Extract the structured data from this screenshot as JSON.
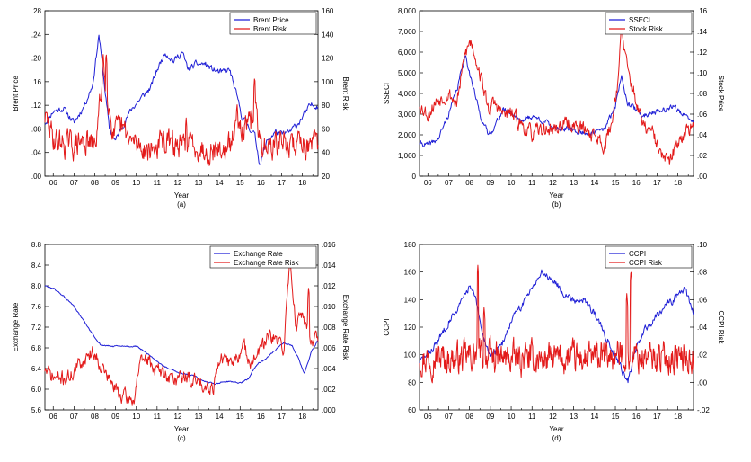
{
  "chart_data": [
    {
      "type": "line",
      "caption": "(a)",
      "xlabel": "Year",
      "ylabel_left": "Brent Price",
      "ylabel_right": "Brent Risk",
      "x_ticks": [
        "06",
        "07",
        "08",
        "09",
        "10",
        "11",
        "12",
        "13",
        "14",
        "15",
        "16",
        "17",
        "18"
      ],
      "xlim": [
        2005.6,
        2018.75
      ],
      "ylim_left": [
        0.0,
        0.28
      ],
      "ylim_right": [
        20,
        160
      ],
      "ticks_left": [
        ".00",
        ".04",
        ".08",
        ".12",
        ".16",
        ".20",
        ".24",
        ".28"
      ],
      "ticks_right": [
        "20",
        "40",
        "60",
        "80",
        "100",
        "120",
        "140",
        "160"
      ],
      "series": [
        {
          "name": "Brent Price",
          "axis": "left",
          "color": "#1f1fd6",
          "seed": 11,
          "x": [
            2005.6,
            2006.0,
            2006.5,
            2007.0,
            2007.5,
            2007.9,
            2008.2,
            2008.45,
            2008.7,
            2009.0,
            2009.4,
            2009.8,
            2010.3,
            2010.7,
            2011.0,
            2011.4,
            2011.8,
            2012.2,
            2012.5,
            2012.9,
            2013.3,
            2013.7,
            2014.1,
            2014.5,
            2014.8,
            2015.1,
            2015.4,
            2015.7,
            2015.95,
            2016.3,
            2016.7,
            2017.0,
            2017.4,
            2017.8,
            2018.1,
            2018.4,
            2018.75
          ],
          "y": [
            0.09,
            0.11,
            0.115,
            0.09,
            0.12,
            0.155,
            0.24,
            0.16,
            0.08,
            0.06,
            0.09,
            0.115,
            0.135,
            0.15,
            0.18,
            0.21,
            0.195,
            0.21,
            0.18,
            0.19,
            0.19,
            0.18,
            0.175,
            0.18,
            0.14,
            0.1,
            0.085,
            0.07,
            0.02,
            0.06,
            0.075,
            0.07,
            0.075,
            0.09,
            0.105,
            0.12,
            0.12
          ],
          "noise": 0.0045,
          "samples": 420
        },
        {
          "name": "Brent Risk",
          "axis": "right",
          "color": "#e31a1a",
          "seed": 29,
          "x": [
            2005.6,
            2006.0,
            2006.5,
            2007.0,
            2007.5,
            2008.0,
            2008.25,
            2008.4,
            2008.6,
            2008.9,
            2009.3,
            2009.8,
            2010.3,
            2010.8,
            2011.3,
            2011.8,
            2012.3,
            2012.8,
            2013.3,
            2013.8,
            2014.3,
            2014.6,
            2014.9,
            2015.2,
            2015.5,
            2015.7,
            2015.95,
            2016.3,
            2016.7,
            2017.1,
            2017.5,
            2017.9,
            2018.3,
            2018.75
          ],
          "y": [
            70,
            52,
            48,
            46,
            50,
            44,
            80,
            110,
            90,
            55,
            60,
            48,
            45,
            42,
            50,
            46,
            44,
            48,
            42,
            44,
            40,
            48,
            70,
            60,
            62,
            80,
            48,
            45,
            46,
            50,
            44,
            52,
            46,
            44
          ],
          "noise": 9,
          "samples": 520,
          "spikes": [
            [
              2008.4,
              125
            ],
            [
              2008.55,
              125
            ],
            [
              2015.7,
              105
            ],
            [
              2012.4,
              70
            ],
            [
              2014.85,
              82
            ]
          ]
        }
      ],
      "legend": {
        "placement": "top-right"
      }
    },
    {
      "type": "line",
      "caption": "(b)",
      "xlabel": "Year",
      "ylabel_left": "SSECI",
      "ylabel_right": "Stock Price",
      "x_ticks": [
        "06",
        "07",
        "08",
        "09",
        "10",
        "11",
        "12",
        "13",
        "14",
        "15",
        "16",
        "17",
        "18"
      ],
      "xlim": [
        2005.6,
        2018.75
      ],
      "ylim_left": [
        0,
        8000
      ],
      "ylim_right": [
        0.0,
        0.16
      ],
      "ticks_left": [
        "0",
        "1,000",
        "2,000",
        "3,000",
        "4,000",
        "5,000",
        "6,000",
        "7,000",
        "8,000"
      ],
      "ticks_right": [
        ".00",
        ".02",
        ".04",
        ".06",
        ".08",
        ".10",
        ".12",
        ".14",
        ".16"
      ],
      "series": [
        {
          "name": "SSECI",
          "axis": "left",
          "color": "#1f1fd6",
          "seed": 41,
          "x": [
            2005.6,
            2006.0,
            2006.5,
            2007.0,
            2007.4,
            2007.8,
            2008.1,
            2008.5,
            2008.9,
            2009.2,
            2009.6,
            2010.0,
            2010.5,
            2011.0,
            2011.5,
            2012.0,
            2012.5,
            2013.0,
            2013.5,
            2014.0,
            2014.5,
            2015.0,
            2015.3,
            2015.6,
            2015.9,
            2016.3,
            2016.8,
            2017.3,
            2017.8,
            2018.2,
            2018.75
          ],
          "y": [
            1600,
            1500,
            1800,
            3000,
            4200,
            5900,
            4600,
            3000,
            2000,
            2400,
            3200,
            3100,
            2700,
            2900,
            2700,
            2400,
            2300,
            2200,
            2100,
            2100,
            2300,
            3400,
            4900,
            3500,
            3300,
            2900,
            3100,
            3200,
            3400,
            3000,
            2600
          ],
          "noise": 110,
          "samples": 480
        },
        {
          "name": "Stock Risk",
          "axis": "right",
          "color": "#e31a1a",
          "seed": 53,
          "x": [
            2005.6,
            2006.0,
            2006.5,
            2007.0,
            2007.4,
            2007.8,
            2008.1,
            2008.5,
            2008.9,
            2009.2,
            2009.6,
            2010.0,
            2010.5,
            2011.0,
            2011.5,
            2012.0,
            2012.5,
            2013.0,
            2013.5,
            2014.0,
            2014.5,
            2014.8,
            2015.1,
            2015.3,
            2015.6,
            2015.9,
            2016.3,
            2016.8,
            2017.2,
            2017.6,
            2018.0,
            2018.4,
            2018.75
          ],
          "y": [
            0.07,
            0.06,
            0.075,
            0.08,
            0.07,
            0.12,
            0.13,
            0.1,
            0.065,
            0.07,
            0.06,
            0.06,
            0.05,
            0.04,
            0.045,
            0.045,
            0.05,
            0.05,
            0.045,
            0.04,
            0.03,
            0.05,
            0.09,
            0.14,
            0.1,
            0.08,
            0.05,
            0.04,
            0.02,
            0.012,
            0.035,
            0.045,
            0.045
          ],
          "noise": 0.006,
          "samples": 480,
          "spikes": [
            [
              2015.3,
              0.15
            ],
            [
              2008.0,
              0.135
            ]
          ]
        }
      ],
      "legend": {
        "placement": "top-right"
      }
    },
    {
      "type": "line",
      "caption": "(c)",
      "xlabel": "Year",
      "ylabel_left": "Exchange Rate",
      "ylabel_right": "Exchange Rate Risk",
      "x_ticks": [
        "06",
        "07",
        "08",
        "09",
        "10",
        "11",
        "12",
        "13",
        "14",
        "15",
        "16",
        "17",
        "18"
      ],
      "xlim": [
        2005.6,
        2018.75
      ],
      "ylim_left": [
        5.6,
        8.8
      ],
      "ylim_right": [
        0.0,
        0.016
      ],
      "ticks_left": [
        "5.6",
        "6.0",
        "6.4",
        "6.8",
        "7.2",
        "7.6",
        "8.0",
        "8.4",
        "8.8"
      ],
      "ticks_right": [
        ".000",
        ".002",
        ".004",
        ".006",
        ".008",
        ".010",
        ".012",
        ".014",
        ".016"
      ],
      "series": [
        {
          "name": "Exchange Rate",
          "axis": "left",
          "color": "#1f1fd6",
          "seed": 61,
          "x": [
            2005.6,
            2006.0,
            2006.5,
            2007.0,
            2007.5,
            2008.0,
            2008.3,
            2008.8,
            2009.5,
            2010.0,
            2010.3,
            2010.8,
            2011.3,
            2011.8,
            2012.3,
            2012.8,
            2013.3,
            2013.8,
            2014.2,
            2014.6,
            2015.0,
            2015.4,
            2015.6,
            2015.9,
            2016.3,
            2016.8,
            2017.1,
            2017.5,
            2017.8,
            2018.1,
            2018.4,
            2018.75
          ],
          "y": [
            8.0,
            7.95,
            7.8,
            7.6,
            7.3,
            7.0,
            6.85,
            6.83,
            6.83,
            6.83,
            6.75,
            6.6,
            6.45,
            6.35,
            6.3,
            6.25,
            6.15,
            6.1,
            6.15,
            6.15,
            6.12,
            6.2,
            6.35,
            6.5,
            6.6,
            6.8,
            6.9,
            6.85,
            6.6,
            6.3,
            6.7,
            6.95
          ],
          "noise": 0.012,
          "samples": 420
        },
        {
          "name": "Exchange Rate Risk",
          "axis": "right",
          "color": "#e31a1a",
          "seed": 71,
          "x": [
            2005.6,
            2005.9,
            2006.3,
            2006.8,
            2007.3,
            2007.7,
            2008.0,
            2008.4,
            2008.8,
            2009.2,
            2009.6,
            2009.9,
            2010.1,
            2010.5,
            2010.9,
            2011.3,
            2011.8,
            2012.3,
            2012.8,
            2013.3,
            2013.7,
            2014.0,
            2014.4,
            2014.8,
            2015.2,
            2015.6,
            2016.0,
            2016.4,
            2016.8,
            2017.1,
            2017.4,
            2017.7,
            2018.0,
            2018.3,
            2018.75
          ],
          "y": [
            0.004,
            0.0032,
            0.003,
            0.0032,
            0.0045,
            0.0055,
            0.0055,
            0.004,
            0.0025,
            0.0015,
            0.001,
            0.001,
            0.004,
            0.005,
            0.004,
            0.0035,
            0.003,
            0.0032,
            0.0028,
            0.0025,
            0.0022,
            0.005,
            0.0045,
            0.005,
            0.006,
            0.0045,
            0.006,
            0.007,
            0.0065,
            0.006,
            0.0145,
            0.008,
            0.0095,
            0.0075,
            0.0065
          ],
          "noise": 0.0006,
          "samples": 460,
          "spikes": [
            [
              2017.4,
              0.0148
            ],
            [
              2018.3,
              0.012
            ]
          ]
        }
      ],
      "legend": {
        "placement": "top-right"
      }
    },
    {
      "type": "line",
      "caption": "(d)",
      "xlabel": "Year",
      "ylabel_left": "CCPI",
      "ylabel_right": "CCPI Risk",
      "x_ticks": [
        "06",
        "07",
        "08",
        "09",
        "10",
        "11",
        "12",
        "13",
        "14",
        "15",
        "16",
        "17",
        "18"
      ],
      "xlim": [
        2005.6,
        2018.75
      ],
      "ylim_left": [
        60,
        180
      ],
      "ylim_right": [
        -0.02,
        0.1
      ],
      "ticks_left": [
        "60",
        "80",
        "100",
        "120",
        "140",
        "160",
        "180"
      ],
      "ticks_right": [
        "-.02",
        ".00",
        ".02",
        ".04",
        ".06",
        ".08",
        ".10"
      ],
      "series": [
        {
          "name": "CCPI",
          "axis": "left",
          "color": "#1f1fd6",
          "seed": 83,
          "x": [
            2005.6,
            2006.0,
            2006.5,
            2007.0,
            2007.5,
            2008.0,
            2008.3,
            2008.6,
            2009.0,
            2009.5,
            2010.0,
            2010.5,
            2011.0,
            2011.5,
            2012.0,
            2012.5,
            2013.0,
            2013.5,
            2014.0,
            2014.5,
            2015.0,
            2015.3,
            2015.6,
            2015.9,
            2016.3,
            2016.8,
            2017.3,
            2017.8,
            2018.3,
            2018.75
          ],
          "y": [
            95,
            100,
            110,
            125,
            135,
            150,
            140,
            115,
            100,
            105,
            125,
            135,
            150,
            160,
            155,
            145,
            140,
            140,
            130,
            115,
            100,
            90,
            80,
            100,
            115,
            125,
            135,
            140,
            148,
            130
          ],
          "noise": 2.2,
          "samples": 460
        },
        {
          "name": "CCPI Risk",
          "axis": "right",
          "color": "#e31a1a",
          "seed": 97,
          "x": [
            2005.6,
            2006.5,
            2007.5,
            2008.5,
            2009.5,
            2010.5,
            2011.5,
            2012.5,
            2013.5,
            2014.5,
            2015.5,
            2016.5,
            2017.5,
            2018.75
          ],
          "y": [
            0.018,
            0.018,
            0.017,
            0.02,
            0.017,
            0.017,
            0.017,
            0.017,
            0.017,
            0.018,
            0.02,
            0.018,
            0.018,
            0.018
          ],
          "noise": 0.009,
          "samples": 620,
          "spikes": [
            [
              2008.4,
              0.085
            ],
            [
              2015.75,
              0.082
            ],
            [
              2015.55,
              0.065
            ],
            [
              2008.7,
              0.055
            ]
          ]
        }
      ],
      "legend": {
        "placement": "top-right"
      }
    }
  ]
}
